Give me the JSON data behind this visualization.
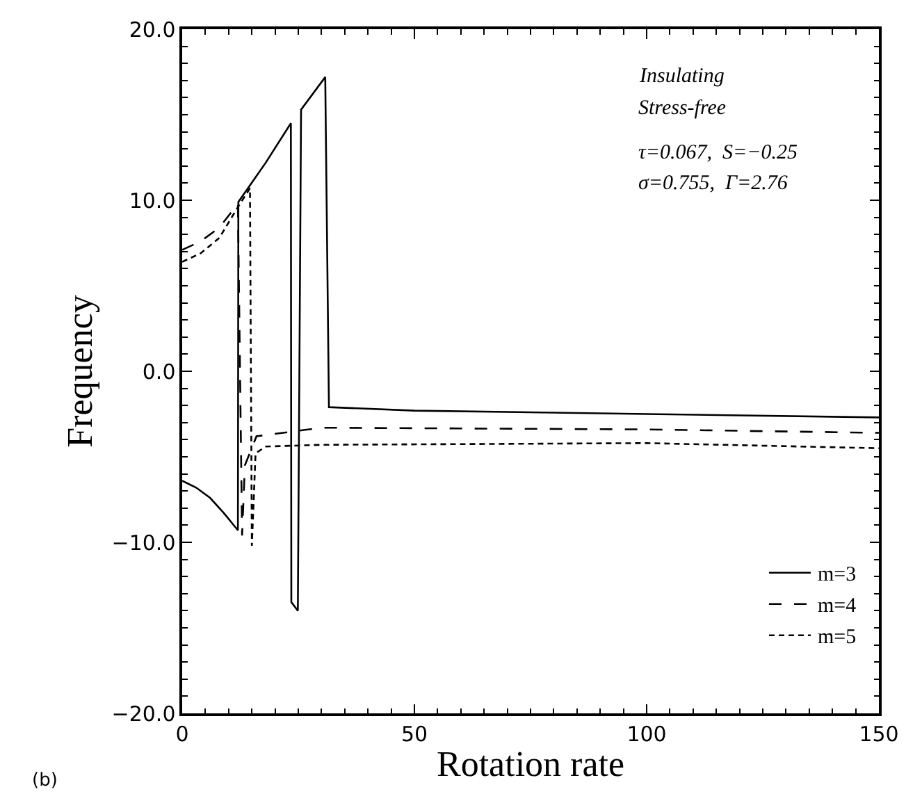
{
  "chart_data": {
    "type": "line",
    "xlabel": "Rotation rate",
    "ylabel": "Frequency",
    "xlim": [
      0,
      150
    ],
    "xticks": [
      0,
      50,
      100,
      150
    ],
    "ylim": [
      -20,
      20
    ],
    "yticks": [
      {
        "value": -20,
        "label": "−20.0"
      },
      {
        "value": -10,
        "label": "−10.0"
      },
      {
        "value": 0,
        "label": "0.0"
      },
      {
        "value": 10,
        "label": "10.0"
      },
      {
        "value": 20,
        "label": "20.0"
      }
    ],
    "legend": "bottom right",
    "marker": "none",
    "series": [
      {
        "name": "m=3",
        "color": "#000000",
        "line_style": "solid",
        "x": [
          0,
          3,
          6,
          9,
          12,
          12.1,
          18,
          23.4,
          23.5,
          24.9,
          25.6,
          30.8,
          31.6,
          50,
          100,
          150
        ],
        "values": [
          -6.4,
          -6.8,
          -7.4,
          -8.3,
          -9.3,
          9.9,
          12.2,
          14.5,
          -13.5,
          -14.0,
          15.3,
          17.2,
          -2.1,
          -2.3,
          -2.5,
          -2.7
        ]
      },
      {
        "name": "m=4",
        "color": "#000000",
        "line_style": "dashed",
        "x": [
          0,
          4,
          8,
          12,
          12.9,
          13.5,
          16,
          30,
          100,
          150
        ],
        "values": [
          7.1,
          7.6,
          8.4,
          9.8,
          -9.6,
          -5.5,
          -3.8,
          -3.3,
          -3.4,
          -3.6
        ]
      },
      {
        "name": "m=5",
        "color": "#000000",
        "line_style": "dotted",
        "x": [
          0,
          4,
          8,
          12,
          14.6,
          15.0,
          15.8,
          18,
          30,
          100,
          150
        ],
        "values": [
          6.4,
          6.9,
          7.8,
          9.6,
          10.7,
          -10.2,
          -4.8,
          -4.4,
          -4.3,
          -4.2,
          -4.5
        ]
      }
    ],
    "annotations": [
      "Insulating",
      "Stress-free",
      "τ=0.067,  S=−0.25",
      "σ=0.755,  Γ=2.76",
      "(b)"
    ]
  }
}
